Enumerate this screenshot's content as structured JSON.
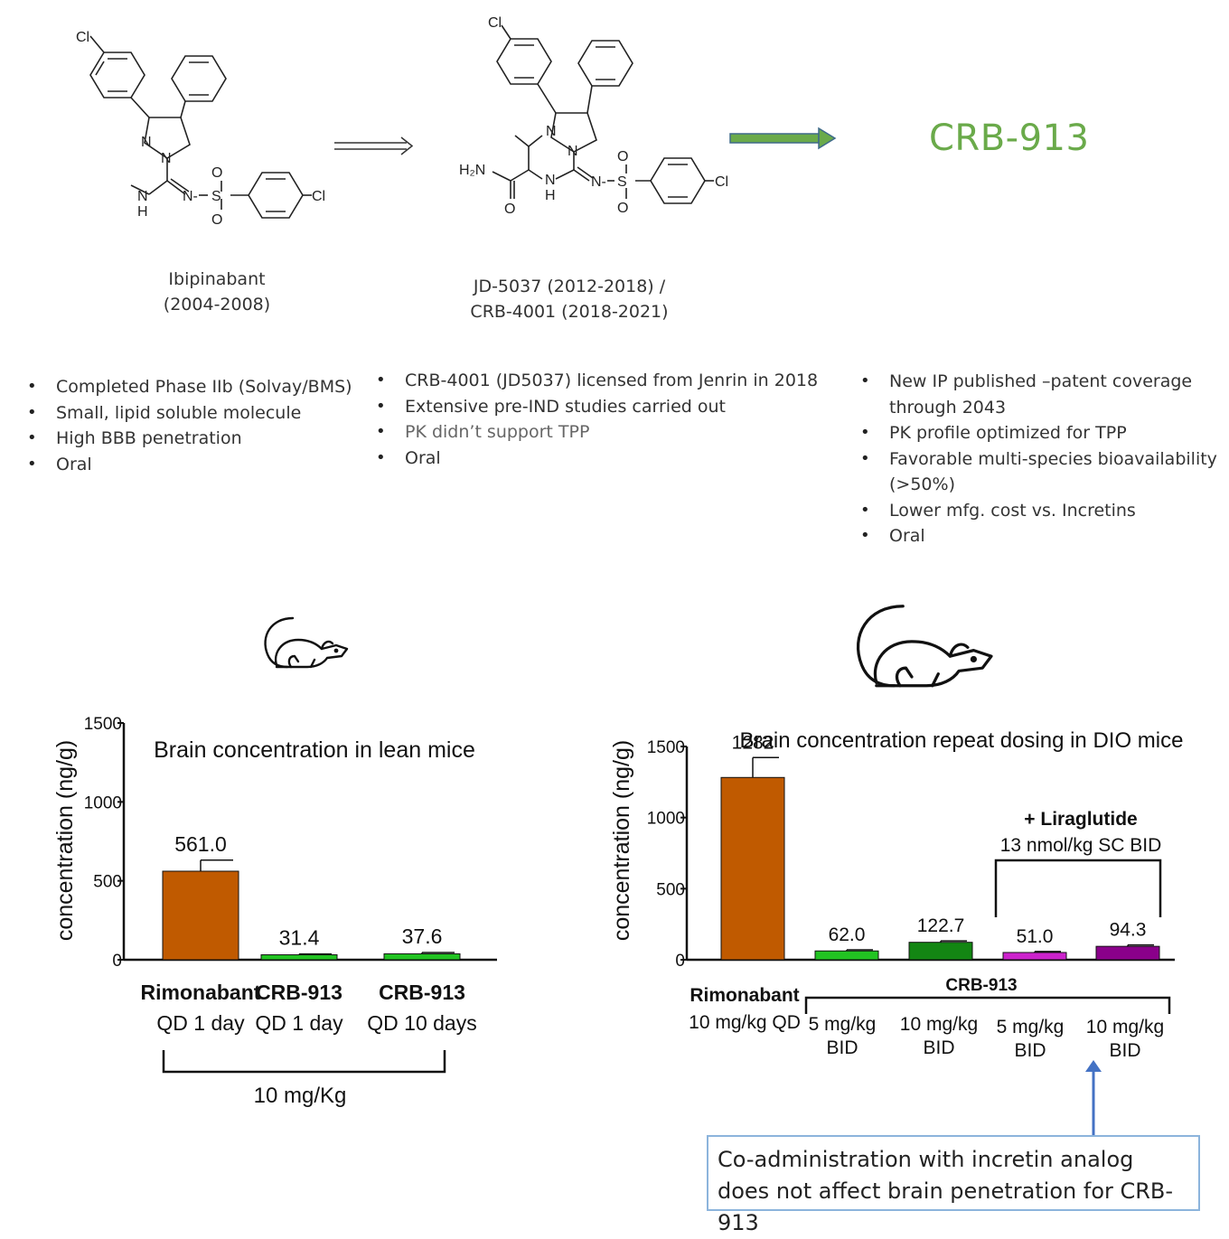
{
  "structures": [
    {
      "name": "Ibipinabant",
      "years": "(2004-2008)"
    },
    {
      "name": "JD-5037 (2012-2018) /",
      "years": "CRB-4001 (2018-2021)"
    }
  ],
  "structure_labels": {
    "s1": {
      "cl_top": "Cl",
      "n1": "N",
      "n2": "N",
      "nh": "N",
      "h": "H",
      "n3": "N-",
      "s": "S",
      "o1": "O",
      "o2": "O",
      "cl_right": "Cl"
    },
    "s2": {
      "cl_top": "Cl",
      "n1": "N",
      "n2": "N",
      "h2n": "H₂N",
      "o": "O",
      "nh": "N",
      "h": "H",
      "n3": "N-",
      "s": "S",
      "o1": "O",
      "o2": "O",
      "cl_right": "Cl"
    }
  },
  "product_name": "CRB-913",
  "bullets": {
    "col1": [
      "Completed Phase IIb (Solvay/BMS)",
      "Small, lipid soluble molecule",
      "High BBB penetration",
      "Oral"
    ],
    "col2": [
      "CRB-4001 (JD5037) licensed from Jenrin in 2018",
      "Extensive pre-IND studies carried out",
      "PK didn’t support TPP",
      "Oral"
    ],
    "col3": [
      "New IP published –patent coverage",
      "through 2043",
      "PK profile optimized for TPP",
      "Favorable multi-species bioavailability",
      "(>50%)",
      "Lower mfg. cost vs. Incretins",
      "Oral"
    ]
  },
  "icons": {
    "left": "mouse-icon",
    "right": "mouse-icon"
  },
  "colors": {
    "accent_green": "#6aaa4a",
    "rimonabant": "#c05a00",
    "crb913": "#22c322",
    "crb913_dark": "#138613",
    "lira_5": "#cc22cc",
    "lira_10": "#8a008a",
    "note_border": "#8cb4dc",
    "arrow_blue": "#4472c4"
  },
  "chart_data": [
    {
      "type": "bar",
      "title": "Brain concentration in lean mice",
      "ylabel": "concentration (ng/g)",
      "ylim": [
        0,
        1500
      ],
      "yticks": [
        "0",
        "500",
        "1000",
        "1500"
      ],
      "categories": [
        {
          "name": "Rimonabant",
          "sub": "QD 1 day"
        },
        {
          "name": "CRB-913",
          "sub": "QD 1 day"
        },
        {
          "name": "CRB-913",
          "sub": "QD 10 days"
        }
      ],
      "values": [
        561.0,
        31.4,
        37.6
      ],
      "errors": [
        70,
        5,
        8
      ],
      "labels": [
        "561.0",
        "31.4",
        "37.6"
      ],
      "colors": [
        "#c05a00",
        "#22c322",
        "#22c322"
      ],
      "group_label": "10 mg/Kg",
      "grid": false
    },
    {
      "type": "bar",
      "title": "Brain concentration repeat dosing in DIO mice",
      "ylabel": "concentration (ng/g)",
      "ylim": [
        0,
        1500
      ],
      "yticks": [
        "0",
        "500",
        "1000",
        "1500"
      ],
      "categories": [
        {
          "name": "Rimonabant",
          "sub": "10 mg/kg QD"
        },
        {
          "name": "",
          "sub": "5 mg/kg",
          "sub2": "BID"
        },
        {
          "name": "",
          "sub": "10 mg/kg",
          "sub2": "BID"
        },
        {
          "name": "",
          "sub": "5 mg/kg",
          "sub2": "BID"
        },
        {
          "name": "",
          "sub": "10 mg/kg",
          "sub2": "BID"
        }
      ],
      "values": [
        1282,
        62.0,
        122.7,
        51.0,
        94.3
      ],
      "errors": [
        140,
        8,
        10,
        7,
        10
      ],
      "labels": [
        "1282",
        "62.0",
        "122.7",
        "51.0",
        "94.3"
      ],
      "colors": [
        "#c05a00",
        "#22c322",
        "#138613",
        "#cc22cc",
        "#8a008a"
      ],
      "group_label": "CRB-913",
      "bracket_title": "+ Liraglutide",
      "bracket_sub": "13 nmol/kg SC BID",
      "grid": false
    }
  ],
  "note": "Co-administration with incretin analog does not affect brain penetration for CRB-913"
}
